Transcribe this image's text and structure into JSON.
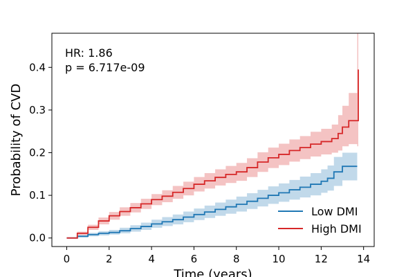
{
  "chart_data": {
    "type": "line",
    "title": "",
    "xlabel": "Time (years)",
    "ylabel": "Probability of CVD",
    "xlim": [
      -0.7,
      14.5
    ],
    "ylim": [
      -0.02,
      0.48
    ],
    "xticks": [
      0,
      2,
      4,
      6,
      8,
      10,
      12,
      14
    ],
    "xtick_labels": [
      "0",
      "2",
      "4",
      "6",
      "8",
      "10",
      "12",
      "14"
    ],
    "yticks": [
      0.0,
      0.1,
      0.2,
      0.3,
      0.4
    ],
    "ytick_labels": [
      "0.0",
      "0.1",
      "0.2",
      "0.3",
      "0.4"
    ],
    "grid": false,
    "legend_position": "bottom-right",
    "annotations": [
      "HR: 1.86",
      "p = 6.717e-09"
    ],
    "series": [
      {
        "name": "Low DMI",
        "color": "#1f77b4",
        "x": [
          0,
          0.5,
          1,
          1.5,
          2,
          2.5,
          3,
          3.5,
          4,
          4.5,
          5,
          5.5,
          6,
          6.5,
          7,
          7.5,
          8,
          8.5,
          9,
          9.5,
          10,
          10.5,
          11,
          11.5,
          12,
          12.3,
          12.6,
          13,
          13.5,
          13.7
        ],
        "y": [
          0,
          0.004,
          0.008,
          0.011,
          0.013,
          0.017,
          0.022,
          0.027,
          0.033,
          0.038,
          0.043,
          0.049,
          0.055,
          0.061,
          0.067,
          0.073,
          0.079,
          0.086,
          0.093,
          0.1,
          0.106,
          0.113,
          0.119,
          0.126,
          0.133,
          0.14,
          0.155,
          0.168,
          0.168,
          0.168
        ],
        "ci_low": [
          0,
          0.001,
          0.004,
          0.006,
          0.008,
          0.011,
          0.015,
          0.019,
          0.024,
          0.028,
          0.032,
          0.037,
          0.042,
          0.047,
          0.052,
          0.057,
          0.062,
          0.068,
          0.074,
          0.08,
          0.085,
          0.09,
          0.095,
          0.1,
          0.106,
          0.111,
          0.122,
          0.135,
          0.135,
          0.135
        ],
        "ci_high": [
          0,
          0.007,
          0.012,
          0.016,
          0.019,
          0.024,
          0.03,
          0.036,
          0.043,
          0.049,
          0.055,
          0.062,
          0.069,
          0.076,
          0.083,
          0.09,
          0.097,
          0.105,
          0.113,
          0.121,
          0.128,
          0.136,
          0.144,
          0.152,
          0.161,
          0.17,
          0.19,
          0.2,
          0.2,
          0.2
        ]
      },
      {
        "name": "High DMI",
        "color": "#d62728",
        "x": [
          0,
          0.5,
          1,
          1.5,
          2,
          2.5,
          3,
          3.5,
          4,
          4.5,
          5,
          5.5,
          6,
          6.5,
          7,
          7.5,
          8,
          8.5,
          9,
          9.5,
          10,
          10.5,
          11,
          11.5,
          12,
          12.5,
          12.8,
          13,
          13.3,
          13.7,
          13.75
        ],
        "y": [
          0,
          0.011,
          0.025,
          0.04,
          0.052,
          0.062,
          0.071,
          0.08,
          0.09,
          0.098,
          0.107,
          0.116,
          0.126,
          0.134,
          0.142,
          0.149,
          0.155,
          0.165,
          0.178,
          0.188,
          0.196,
          0.205,
          0.212,
          0.22,
          0.226,
          0.233,
          0.245,
          0.26,
          0.275,
          0.275,
          0.395
        ],
        "ci_low": [
          0,
          0.007,
          0.019,
          0.032,
          0.043,
          0.052,
          0.06,
          0.068,
          0.077,
          0.084,
          0.092,
          0.1,
          0.109,
          0.116,
          0.123,
          0.129,
          0.134,
          0.143,
          0.155,
          0.164,
          0.171,
          0.179,
          0.185,
          0.191,
          0.196,
          0.2,
          0.205,
          0.215,
          0.22,
          0.215,
          0.21
        ],
        "ci_high": [
          0,
          0.015,
          0.031,
          0.048,
          0.061,
          0.072,
          0.082,
          0.092,
          0.103,
          0.112,
          0.122,
          0.132,
          0.143,
          0.152,
          0.161,
          0.169,
          0.176,
          0.187,
          0.201,
          0.212,
          0.221,
          0.231,
          0.239,
          0.249,
          0.256,
          0.266,
          0.288,
          0.31,
          0.34,
          0.48,
          0.48
        ]
      }
    ]
  }
}
